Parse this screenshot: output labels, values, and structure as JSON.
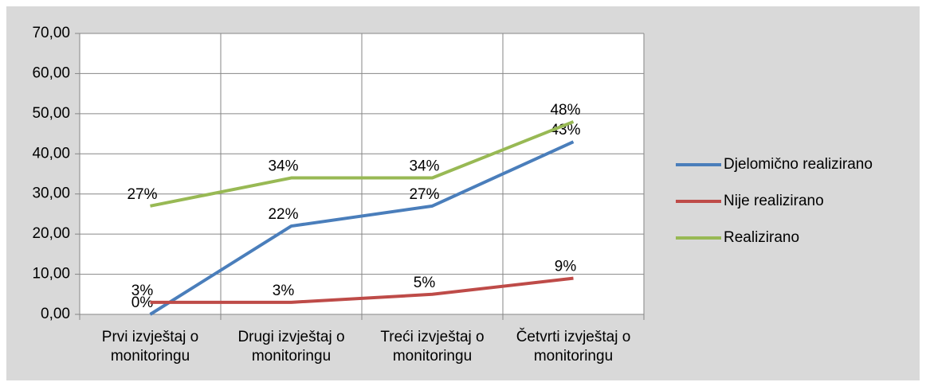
{
  "chart_data": {
    "type": "line",
    "categories": [
      "Prvi izvještaj o monitoringu",
      "Drugi izvještaj o monitoringu",
      "Treći izvještaj o monitoringu",
      "Četvrti izvještaj o monitoringu"
    ],
    "series": [
      {
        "name": "Djelomično realizirano",
        "color": "#4a7ebb",
        "values": [
          0,
          22,
          27,
          43
        ],
        "value_labels": [
          "0%",
          "22%",
          "27%",
          "43%"
        ]
      },
      {
        "name": "Nije realizirano",
        "color": "#be4b48",
        "values": [
          3,
          3,
          5,
          9
        ],
        "value_labels": [
          "3%",
          "3%",
          "5%",
          "9%"
        ]
      },
      {
        "name": "Realizirano",
        "color": "#98b954",
        "values": [
          27,
          34,
          34,
          48
        ],
        "value_labels": [
          "27%",
          "34%",
          "34%",
          "48%"
        ]
      }
    ],
    "ylim": [
      0,
      70
    ],
    "yticks": [
      {
        "value": 0,
        "label": "0,00"
      },
      {
        "value": 10,
        "label": "10,00"
      },
      {
        "value": 20,
        "label": "20,00"
      },
      {
        "value": 30,
        "label": "30,00"
      },
      {
        "value": 40,
        "label": "40,00"
      },
      {
        "value": 50,
        "label": "50,00"
      },
      {
        "value": 60,
        "label": "60,00"
      },
      {
        "value": 70,
        "label": "70,00"
      }
    ],
    "grid": true,
    "legend": "right"
  }
}
